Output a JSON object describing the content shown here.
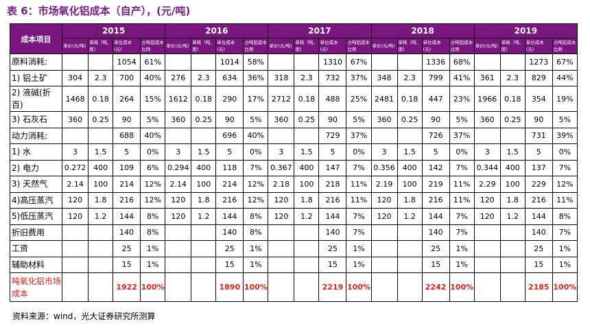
{
  "title": "表 6：市场氧化铝成本（自产），(元/吨)",
  "header": {
    "corner": "成本项目",
    "years": [
      "2015",
      "2016",
      "2017",
      "2018",
      "2019"
    ],
    "sub_columns": [
      "单价(元/吨)",
      "单耗（吨、度)",
      "单位成本(元)",
      "占吨铝成本比例"
    ]
  },
  "rows": [
    {
      "label": "原料消耗:",
      "values": [
        "",
        "",
        "1054",
        "61%",
        "",
        "",
        "1014",
        "58%",
        "",
        "",
        "1310",
        "67%",
        "",
        "",
        "1336",
        "68%",
        "",
        "",
        "1273",
        "67%"
      ]
    },
    {
      "label": "1) 铝土矿",
      "values": [
        "304",
        "2.3",
        "700",
        "40%",
        "276",
        "2.3",
        "634",
        "36%",
        "318",
        "2.3",
        "732",
        "37%",
        "348",
        "2.3",
        "799",
        "41%",
        "361",
        "2.3",
        "829",
        "44%"
      ]
    },
    {
      "label": "2) 液碱(折百)",
      "tall": true,
      "values": [
        "1468",
        "0.18",
        "264",
        "15%",
        "1612",
        "0.18",
        "290",
        "17%",
        "2712",
        "0.18",
        "488",
        "25%",
        "2481",
        "0.18",
        "447",
        "23%",
        "1966",
        "0.18",
        "354",
        "19%"
      ]
    },
    {
      "label": "3) 石灰石",
      "values": [
        "360",
        "0.25",
        "90",
        "5%",
        "360",
        "0.25",
        "90",
        "5%",
        "360",
        "0.25",
        "90",
        "5%",
        "360",
        "0.25",
        "90",
        "5%",
        "360",
        "0.25",
        "90",
        "5%"
      ]
    },
    {
      "label": "动力消耗:",
      "values": [
        "",
        "",
        "688",
        "40%",
        "",
        "",
        "696",
        "40%",
        "",
        "",
        "729",
        "37%",
        "",
        "",
        "726",
        "37%",
        "",
        "",
        "731",
        "39%"
      ]
    },
    {
      "label": "1) 水",
      "values": [
        "3",
        "1.5",
        "5",
        "0%",
        "3",
        "1.5",
        "5",
        "0%",
        "3",
        "1.5",
        "5",
        "0%",
        "3",
        "1.5",
        "5",
        "0%",
        "3",
        "1.5",
        "5",
        "0%"
      ]
    },
    {
      "label": "2) 电力",
      "values": [
        "0.272",
        "400",
        "109",
        "6%",
        "0.294",
        "400",
        "118",
        "7%",
        "0.367",
        "400",
        "147",
        "7%",
        "0.356",
        "400",
        "142",
        "7%",
        "0.344",
        "400",
        "137",
        "7%"
      ]
    },
    {
      "label": "3) 天然气",
      "values": [
        "2.14",
        "100",
        "214",
        "12%",
        "2.14",
        "100",
        "214",
        "12%",
        "2.18",
        "100",
        "218",
        "11%",
        "2.19",
        "100",
        "219",
        "11%",
        "2.29",
        "100",
        "229",
        "12%"
      ]
    },
    {
      "label": "4)高压蒸汽",
      "values": [
        "120",
        "1.8",
        "216",
        "12%",
        "120",
        "1.8",
        "216",
        "12%",
        "120",
        "1.8",
        "216",
        "11%",
        "120",
        "1.8",
        "216",
        "11%",
        "120",
        "1.8",
        "216",
        "11%"
      ]
    },
    {
      "label": "5)低压蒸汽",
      "values": [
        "120",
        "1.2",
        "144",
        "8%",
        "120",
        "1.2",
        "144",
        "8%",
        "120",
        "1.2",
        "144",
        "7%",
        "120",
        "1.2",
        "144",
        "7%",
        "120",
        "1.2",
        "144",
        "8%"
      ]
    },
    {
      "label": "折旧费用",
      "values": [
        "",
        "",
        "140",
        "8%",
        "",
        "",
        "140",
        "8%",
        "",
        "",
        "140",
        "7%",
        "",
        "",
        "140",
        "7%",
        "",
        "",
        "140",
        "7%"
      ]
    },
    {
      "label": "工资",
      "values": [
        "",
        "",
        "25",
        "1%",
        "",
        "",
        "25",
        "1%",
        "",
        "",
        "25",
        "1%",
        "",
        "",
        "25",
        "1%",
        "",
        "",
        "25",
        "1%"
      ]
    },
    {
      "label": "辅助材料",
      "values": [
        "",
        "",
        "15",
        "1%",
        "",
        "",
        "15",
        "1%",
        "",
        "",
        "15",
        "1%",
        "",
        "",
        "15",
        "1%",
        "",
        "",
        "15",
        "1%"
      ]
    },
    {
      "label": "吨氧化铝市场成本",
      "total": true,
      "values": [
        "",
        "",
        "1922",
        "100%",
        "",
        "",
        "1890",
        "100%",
        "",
        "",
        "2219",
        "100%",
        "",
        "",
        "2242",
        "100%",
        "",
        "",
        "2185",
        "100%"
      ]
    }
  ],
  "footer": "资料来源：wind，光大证券研究所测算",
  "colors": {
    "header_bg": "#7b1580",
    "title": "#7a1f86",
    "total_text": "#e8221a"
  }
}
